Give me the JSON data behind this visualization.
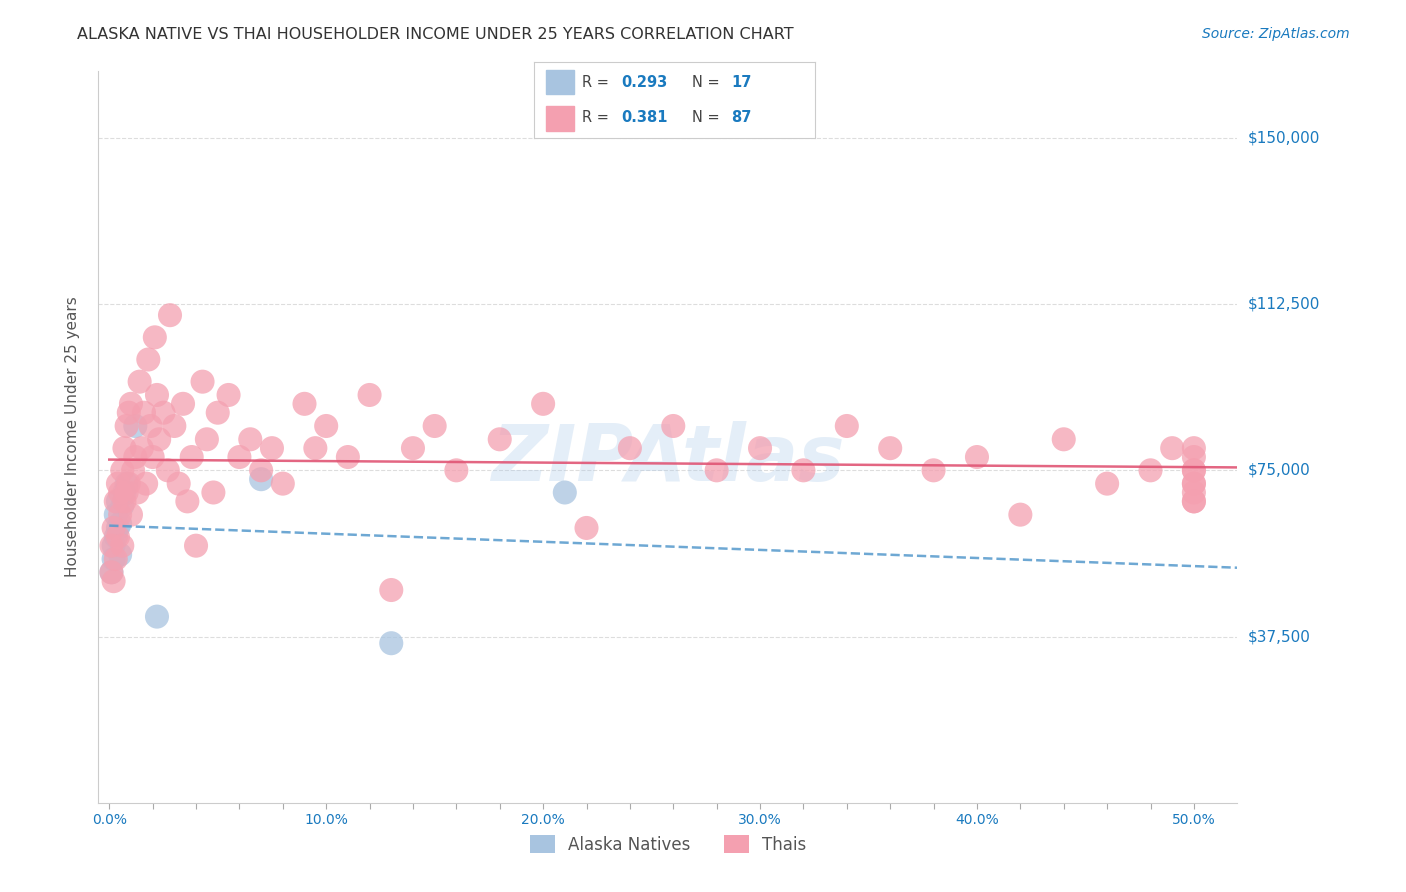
{
  "title": "ALASKA NATIVE VS THAI HOUSEHOLDER INCOME UNDER 25 YEARS CORRELATION CHART",
  "source": "Source: ZipAtlas.com",
  "ylabel": "Householder Income Under 25 years",
  "xlabel_ticks": [
    "0.0%",
    "",
    "",
    "",
    "",
    "10.0%",
    "",
    "",
    "",
    "",
    "20.0%",
    "",
    "",
    "",
    "",
    "30.0%",
    "",
    "",
    "",
    "",
    "40.0%",
    "",
    "",
    "",
    "",
    "50.0%"
  ],
  "xlabel_vals": [
    0.0,
    0.02,
    0.04,
    0.06,
    0.08,
    0.1,
    0.12,
    0.14,
    0.16,
    0.18,
    0.2,
    0.22,
    0.24,
    0.26,
    0.28,
    0.3,
    0.32,
    0.34,
    0.36,
    0.38,
    0.4,
    0.42,
    0.44,
    0.46,
    0.48,
    0.5
  ],
  "ytick_labels": [
    "$37,500",
    "$75,000",
    "$112,500",
    "$150,000"
  ],
  "ytick_vals": [
    37500,
    75000,
    112500,
    150000
  ],
  "ylim": [
    0,
    165000
  ],
  "xlim": [
    -0.005,
    0.52
  ],
  "watermark": "ZIPAtlas",
  "alaska_R": 0.293,
  "alaska_N": 17,
  "thai_R": 0.381,
  "thai_N": 87,
  "alaska_color": "#a8c4e0",
  "thai_color": "#f4a0b0",
  "alaska_line_color": "#5599cc",
  "thai_line_color": "#e05575",
  "alaska_points_x": [
    0.001,
    0.002,
    0.002,
    0.003,
    0.003,
    0.004,
    0.004,
    0.005,
    0.005,
    0.006,
    0.007,
    0.008,
    0.012,
    0.022,
    0.07,
    0.13,
    0.21
  ],
  "alaska_points_y": [
    52000,
    58000,
    55000,
    60000,
    65000,
    62000,
    68000,
    56000,
    63000,
    67000,
    70000,
    72000,
    85000,
    42000,
    73000,
    36000,
    70000
  ],
  "thai_points_x": [
    0.001,
    0.001,
    0.002,
    0.002,
    0.003,
    0.003,
    0.004,
    0.004,
    0.005,
    0.005,
    0.006,
    0.006,
    0.007,
    0.007,
    0.008,
    0.008,
    0.009,
    0.009,
    0.01,
    0.01,
    0.011,
    0.012,
    0.013,
    0.014,
    0.015,
    0.016,
    0.017,
    0.018,
    0.019,
    0.02,
    0.021,
    0.022,
    0.023,
    0.025,
    0.027,
    0.028,
    0.03,
    0.032,
    0.034,
    0.036,
    0.038,
    0.04,
    0.043,
    0.045,
    0.048,
    0.05,
    0.055,
    0.06,
    0.065,
    0.07,
    0.075,
    0.08,
    0.09,
    0.095,
    0.1,
    0.11,
    0.12,
    0.13,
    0.14,
    0.15,
    0.16,
    0.18,
    0.2,
    0.22,
    0.24,
    0.26,
    0.28,
    0.3,
    0.32,
    0.34,
    0.36,
    0.38,
    0.4,
    0.42,
    0.44,
    0.46,
    0.48,
    0.49,
    0.5,
    0.5,
    0.5,
    0.5,
    0.5,
    0.5,
    0.5,
    0.5,
    0.5
  ],
  "thai_points_y": [
    52000,
    58000,
    50000,
    62000,
    55000,
    68000,
    60000,
    72000,
    65000,
    70000,
    58000,
    75000,
    68000,
    80000,
    70000,
    85000,
    72000,
    88000,
    65000,
    90000,
    75000,
    78000,
    70000,
    95000,
    80000,
    88000,
    72000,
    100000,
    85000,
    78000,
    105000,
    92000,
    82000,
    88000,
    75000,
    110000,
    85000,
    72000,
    90000,
    68000,
    78000,
    58000,
    95000,
    82000,
    70000,
    88000,
    92000,
    78000,
    82000,
    75000,
    80000,
    72000,
    90000,
    80000,
    85000,
    78000,
    92000,
    48000,
    80000,
    85000,
    75000,
    82000,
    90000,
    62000,
    80000,
    85000,
    75000,
    80000,
    75000,
    85000,
    80000,
    75000,
    78000,
    65000,
    82000,
    72000,
    75000,
    80000,
    78000,
    72000,
    68000,
    75000,
    72000,
    68000,
    80000,
    75000,
    70000
  ],
  "bg_color": "#ffffff",
  "grid_color": "#dddddd",
  "title_color": "#333333",
  "axis_label_color": "#555555",
  "tick_color": "#1a7abf",
  "legend_border_color": "#cccccc"
}
